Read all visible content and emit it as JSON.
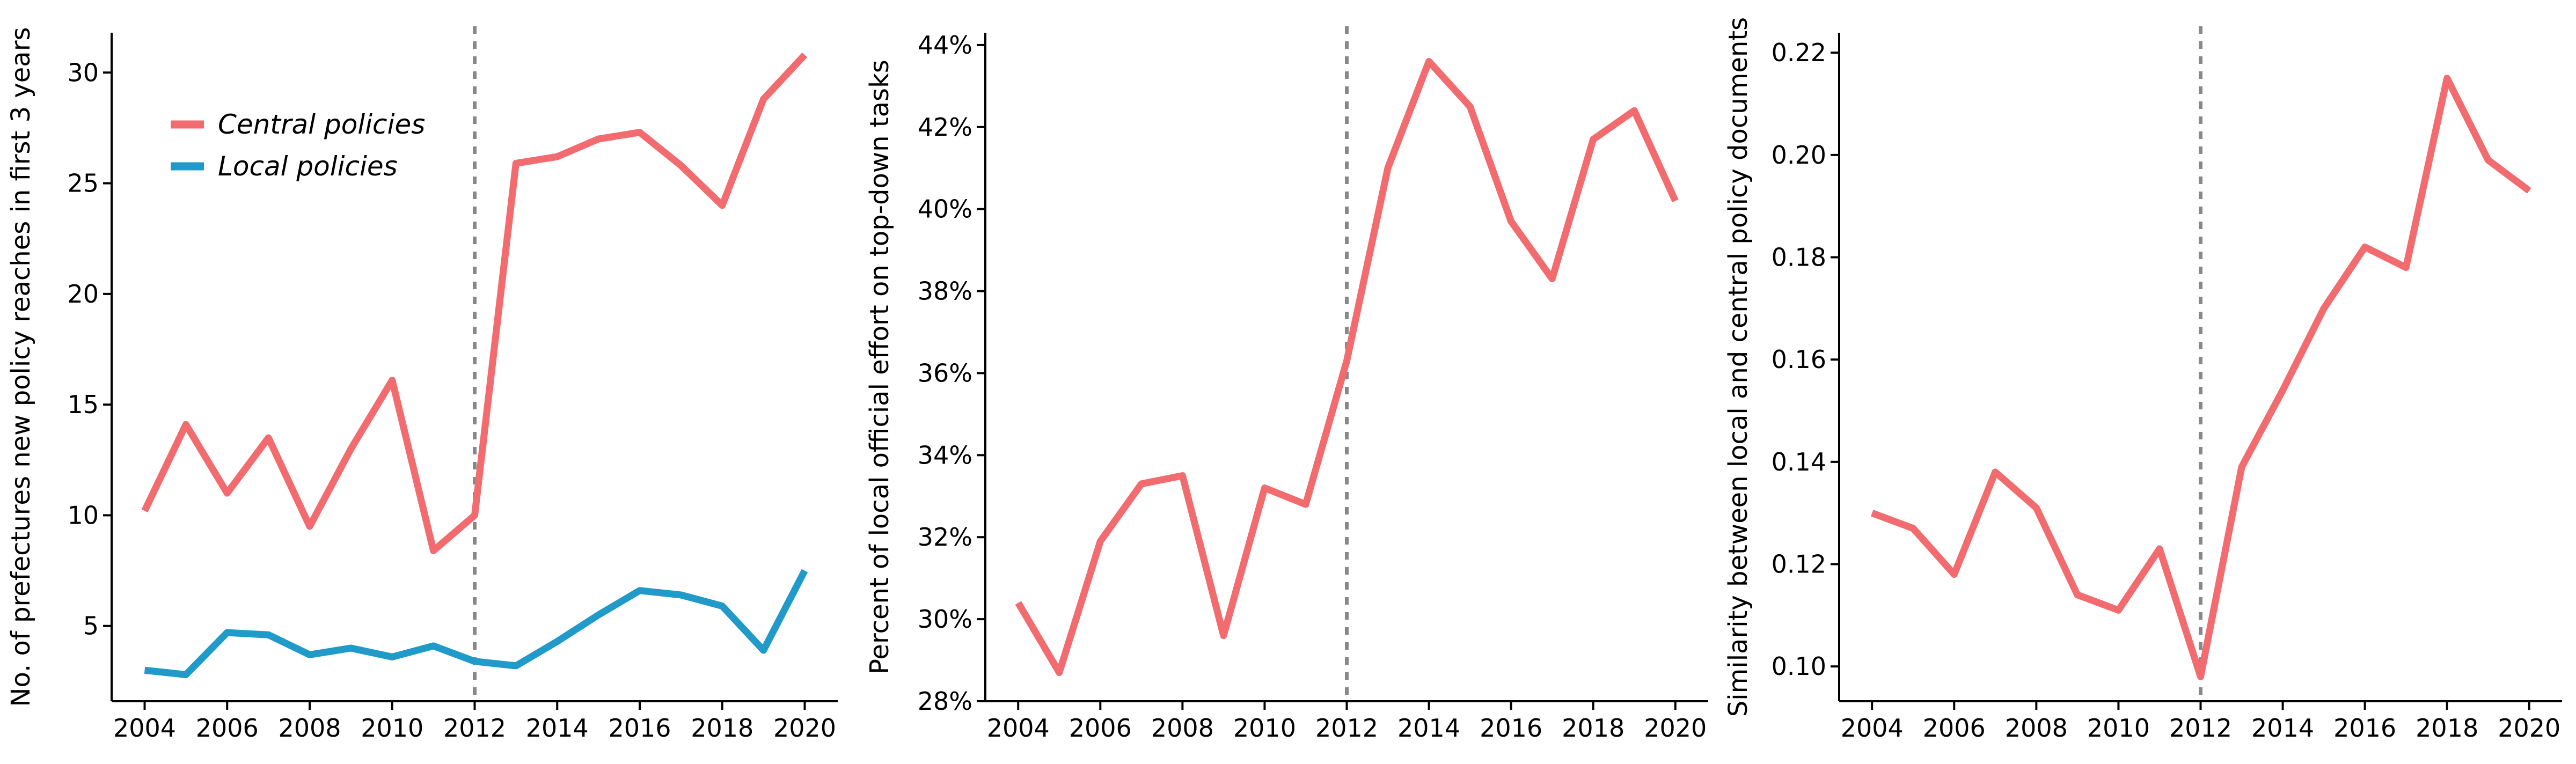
{
  "chart_data": [
    {
      "type": "line",
      "ylabel": "No. of prefectures new policy reaches in first 3 years",
      "x": [
        2004,
        2005,
        2006,
        2007,
        2008,
        2009,
        2010,
        2011,
        2012,
        2013,
        2014,
        2015,
        2016,
        2017,
        2018,
        2019,
        2020
      ],
      "series": [
        {
          "name": "Central policies",
          "color": "#f26b6f",
          "values": [
            10.2,
            14.1,
            11.0,
            13.5,
            9.5,
            13.0,
            16.1,
            8.4,
            10.0,
            25.9,
            26.2,
            27.0,
            27.3,
            25.8,
            24.0,
            28.8,
            30.8
          ]
        },
        {
          "name": "Local policies",
          "color": "#1f9ac9",
          "values": [
            3.0,
            2.8,
            4.7,
            4.6,
            3.7,
            4.0,
            3.6,
            4.1,
            3.4,
            3.2,
            4.3,
            5.5,
            6.6,
            6.4,
            5.9,
            3.9,
            7.5
          ]
        }
      ],
      "xlim": [
        2003.2,
        2020.8
      ],
      "xticks": [
        2004,
        2006,
        2008,
        2010,
        2012,
        2014,
        2016,
        2018,
        2020
      ],
      "ylim": [
        1.6,
        31.8
      ],
      "yticks": [
        5,
        10,
        15,
        20,
        25,
        30
      ],
      "vline": 2012,
      "legend": "upper left"
    },
    {
      "type": "line",
      "ylabel": "Percent of local official effort on top-down tasks",
      "x": [
        2004,
        2005,
        2006,
        2007,
        2008,
        2009,
        2010,
        2011,
        2012,
        2013,
        2014,
        2015,
        2016,
        2017,
        2018,
        2019,
        2020
      ],
      "series": [
        {
          "color": "#f26b6f",
          "values": [
            30.4,
            28.7,
            31.9,
            33.3,
            33.5,
            29.6,
            33.2,
            32.8,
            36.3,
            41.0,
            43.6,
            42.5,
            39.7,
            38.3,
            41.7,
            42.4,
            40.2
          ]
        }
      ],
      "xlim": [
        2003.2,
        2020.8
      ],
      "xticks": [
        2004,
        2006,
        2008,
        2010,
        2012,
        2014,
        2016,
        2018,
        2020
      ],
      "ylim": [
        28,
        44.3
      ],
      "yticks": [
        {
          "value": 28,
          "label": "28%"
        },
        {
          "value": 30,
          "label": "30%"
        },
        {
          "value": 32,
          "label": "32%"
        },
        {
          "value": 34,
          "label": "34%"
        },
        {
          "value": 36,
          "label": "36%"
        },
        {
          "value": 38,
          "label": "38%"
        },
        {
          "value": 40,
          "label": "40%"
        },
        {
          "value": 42,
          "label": "42%"
        },
        {
          "value": 44,
          "label": "44%"
        }
      ],
      "vline": 2012
    },
    {
      "type": "line",
      "ylabel": "Similarity between local and central policy documents",
      "x": [
        2004,
        2005,
        2006,
        2007,
        2008,
        2009,
        2010,
        2011,
        2012,
        2013,
        2014,
        2015,
        2016,
        2017,
        2018,
        2019,
        2020
      ],
      "series": [
        {
          "color": "#f26b6f",
          "values": [
            0.13,
            0.127,
            0.118,
            0.138,
            0.131,
            0.114,
            0.111,
            0.123,
            0.098,
            0.139,
            0.154,
            0.17,
            0.182,
            0.178,
            0.215,
            0.199,
            0.193
          ]
        }
      ],
      "xlim": [
        2003.2,
        2020.8
      ],
      "xticks": [
        2004,
        2006,
        2008,
        2010,
        2012,
        2014,
        2016,
        2018,
        2020
      ],
      "ylim": [
        0.0932,
        0.2239
      ],
      "yticks": [
        {
          "value": 0.1,
          "label": "0.10"
        },
        {
          "value": 0.12,
          "label": "0.12"
        },
        {
          "value": 0.14,
          "label": "0.14"
        },
        {
          "value": 0.16,
          "label": "0.16"
        },
        {
          "value": 0.18,
          "label": "0.18"
        },
        {
          "value": 0.2,
          "label": "0.20"
        },
        {
          "value": 0.22,
          "label": "0.22"
        }
      ],
      "vline": 2012
    }
  ]
}
